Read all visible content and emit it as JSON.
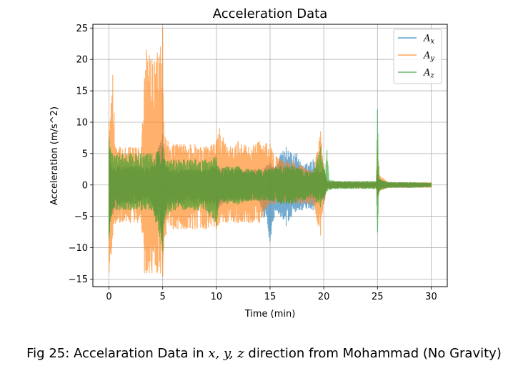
{
  "caption": {
    "prefix": "Fig 25: Accelaration Data in ",
    "vars": "x, y, z",
    "suffix": " direction from Mohammad (No Gravity)"
  },
  "chart_data": {
    "type": "line",
    "title": "Acceleration Data",
    "xlabel": "Time (min)",
    "ylabel": "Acceleration (m/s^2)",
    "xlim": [
      -1.5,
      31.5
    ],
    "ylim": [
      -16.2,
      25.6
    ],
    "xticks": [
      0,
      5,
      10,
      15,
      20,
      25,
      30
    ],
    "yticks": [
      -15,
      -10,
      -5,
      0,
      5,
      10,
      15,
      20,
      25
    ],
    "grid": true,
    "legend_position": "top-right",
    "series": [
      {
        "name": "A_x",
        "label_base": "A",
        "label_sub": "x",
        "color": "#1f77b4",
        "envelope": [
          [
            0.0,
            7.0,
            -8.0
          ],
          [
            0.2,
            3.0,
            -5.0
          ],
          [
            1.0,
            3.0,
            -3.0
          ],
          [
            2.0,
            3.0,
            -3.0
          ],
          [
            3.0,
            3.0,
            -3.0
          ],
          [
            4.0,
            3.0,
            -3.0
          ],
          [
            5.0,
            8.0,
            -9.0
          ],
          [
            5.3,
            3.0,
            -4.0
          ],
          [
            6.0,
            2.5,
            -3.0
          ],
          [
            7.0,
            2.5,
            -3.0
          ],
          [
            8.0,
            2.5,
            -3.0
          ],
          [
            9.0,
            2.5,
            -3.0
          ],
          [
            10.0,
            3.0,
            -4.0
          ],
          [
            11.0,
            2.5,
            -2.5
          ],
          [
            12.0,
            2.5,
            -2.5
          ],
          [
            13.0,
            2.5,
            -2.5
          ],
          [
            14.0,
            2.5,
            -2.5
          ],
          [
            15.0,
            3.5,
            -9.0
          ],
          [
            15.5,
            3.0,
            -4.0
          ],
          [
            16.0,
            5.0,
            -5.0
          ],
          [
            16.5,
            6.0,
            -6.5
          ],
          [
            17.0,
            5.0,
            -5.0
          ],
          [
            17.5,
            5.0,
            -4.0
          ],
          [
            18.0,
            3.0,
            -4.0
          ],
          [
            19.0,
            4.0,
            -4.0
          ],
          [
            19.7,
            2.0,
            -2.0
          ],
          [
            20.0,
            3.0,
            -3.0
          ],
          [
            20.3,
            0.6,
            -0.6
          ],
          [
            21.0,
            0.5,
            -0.5
          ],
          [
            22.0,
            0.5,
            -0.5
          ],
          [
            23.0,
            0.4,
            -0.4
          ],
          [
            24.0,
            0.4,
            -0.4
          ],
          [
            24.9,
            0.4,
            -0.4
          ],
          [
            25.0,
            2.0,
            -1.5
          ],
          [
            25.2,
            0.8,
            -0.6
          ],
          [
            26.0,
            0.4,
            -0.4
          ],
          [
            28.0,
            0.4,
            -0.4
          ],
          [
            30.0,
            0.3,
            -0.3
          ]
        ]
      },
      {
        "name": "A_y",
        "label_base": "A",
        "label_sub": "y",
        "color": "#ff7f0e",
        "envelope": [
          [
            0.0,
            10.0,
            -14.0
          ],
          [
            0.2,
            13.0,
            -11.0
          ],
          [
            0.35,
            17.5,
            -8.0
          ],
          [
            0.6,
            6.0,
            -6.0
          ],
          [
            1.0,
            6.0,
            -6.0
          ],
          [
            2.0,
            6.0,
            -6.0
          ],
          [
            3.0,
            6.0,
            -6.0
          ],
          [
            3.3,
            17.0,
            -14.0
          ],
          [
            3.5,
            21.5,
            -14.0
          ],
          [
            4.0,
            20.0,
            -14.0
          ],
          [
            4.5,
            21.0,
            -14.0
          ],
          [
            4.8,
            22.0,
            -14.0
          ],
          [
            5.0,
            25.0,
            -14.5
          ],
          [
            5.1,
            10.0,
            -10.0
          ],
          [
            5.5,
            7.0,
            -6.0
          ],
          [
            6.0,
            6.5,
            -7.0
          ],
          [
            7.0,
            6.5,
            -7.0
          ],
          [
            8.0,
            6.5,
            -7.0
          ],
          [
            9.0,
            6.0,
            -7.0
          ],
          [
            10.0,
            7.0,
            -7.0
          ],
          [
            10.3,
            9.0,
            -6.0
          ],
          [
            11.0,
            6.0,
            -6.0
          ],
          [
            12.0,
            7.0,
            -6.0
          ],
          [
            13.0,
            6.0,
            -6.0
          ],
          [
            14.0,
            7.0,
            -6.0
          ],
          [
            15.0,
            6.5,
            -3.0
          ],
          [
            15.3,
            5.0,
            -3.0
          ],
          [
            16.0,
            4.0,
            -3.0
          ],
          [
            17.0,
            4.0,
            -3.0
          ],
          [
            18.0,
            3.0,
            -3.0
          ],
          [
            19.0,
            2.0,
            -3.0
          ],
          [
            19.7,
            8.5,
            -8.0
          ],
          [
            20.0,
            3.0,
            -3.0
          ],
          [
            20.3,
            0.6,
            -0.6
          ],
          [
            21.0,
            0.5,
            -0.5
          ],
          [
            22.0,
            0.5,
            -0.5
          ],
          [
            23.0,
            0.5,
            -0.5
          ],
          [
            24.0,
            0.5,
            -0.5
          ],
          [
            24.9,
            0.5,
            -0.5
          ],
          [
            25.0,
            5.5,
            -2.0
          ],
          [
            25.2,
            1.5,
            -1.0
          ],
          [
            26.0,
            0.4,
            -0.4
          ],
          [
            28.0,
            0.4,
            -0.4
          ],
          [
            30.0,
            0.4,
            -0.4
          ]
        ]
      },
      {
        "name": "A_z",
        "label_base": "A",
        "label_sub": "z",
        "color": "#2ca02c",
        "envelope": [
          [
            0.0,
            7.5,
            -8.5
          ],
          [
            0.3,
            5.0,
            -4.0
          ],
          [
            1.0,
            5.0,
            -4.0
          ],
          [
            2.0,
            5.0,
            -4.0
          ],
          [
            3.0,
            5.0,
            -4.0
          ],
          [
            4.0,
            5.0,
            -4.0
          ],
          [
            5.0,
            6.0,
            -10.5
          ],
          [
            5.2,
            4.0,
            -5.5
          ],
          [
            6.0,
            4.0,
            -4.0
          ],
          [
            7.0,
            4.0,
            -4.0
          ],
          [
            8.0,
            4.0,
            -4.0
          ],
          [
            9.0,
            4.0,
            -4.0
          ],
          [
            10.0,
            4.5,
            -6.5
          ],
          [
            10.3,
            2.5,
            -2.5
          ],
          [
            11.0,
            3.0,
            -3.0
          ],
          [
            12.0,
            3.0,
            -3.0
          ],
          [
            13.0,
            2.5,
            -2.5
          ],
          [
            14.0,
            2.5,
            -2.5
          ],
          [
            15.0,
            2.5,
            -2.5
          ],
          [
            16.0,
            3.0,
            -3.0
          ],
          [
            17.0,
            3.0,
            -3.0
          ],
          [
            18.0,
            2.5,
            -2.5
          ],
          [
            19.0,
            2.0,
            -2.0
          ],
          [
            19.7,
            6.0,
            -3.5
          ],
          [
            20.0,
            2.0,
            -2.0
          ],
          [
            20.3,
            5.5,
            -1.0
          ],
          [
            20.5,
            0.8,
            -0.8
          ],
          [
            21.0,
            0.6,
            -0.6
          ],
          [
            22.0,
            0.6,
            -0.6
          ],
          [
            23.0,
            0.6,
            -0.6
          ],
          [
            24.0,
            0.6,
            -0.6
          ],
          [
            24.9,
            0.6,
            -0.6
          ],
          [
            25.0,
            12.0,
            -7.5
          ],
          [
            25.15,
            1.0,
            -1.0
          ],
          [
            26.0,
            0.4,
            -0.4
          ],
          [
            28.0,
            0.4,
            -0.4
          ],
          [
            30.0,
            0.3,
            -0.3
          ]
        ]
      }
    ]
  }
}
